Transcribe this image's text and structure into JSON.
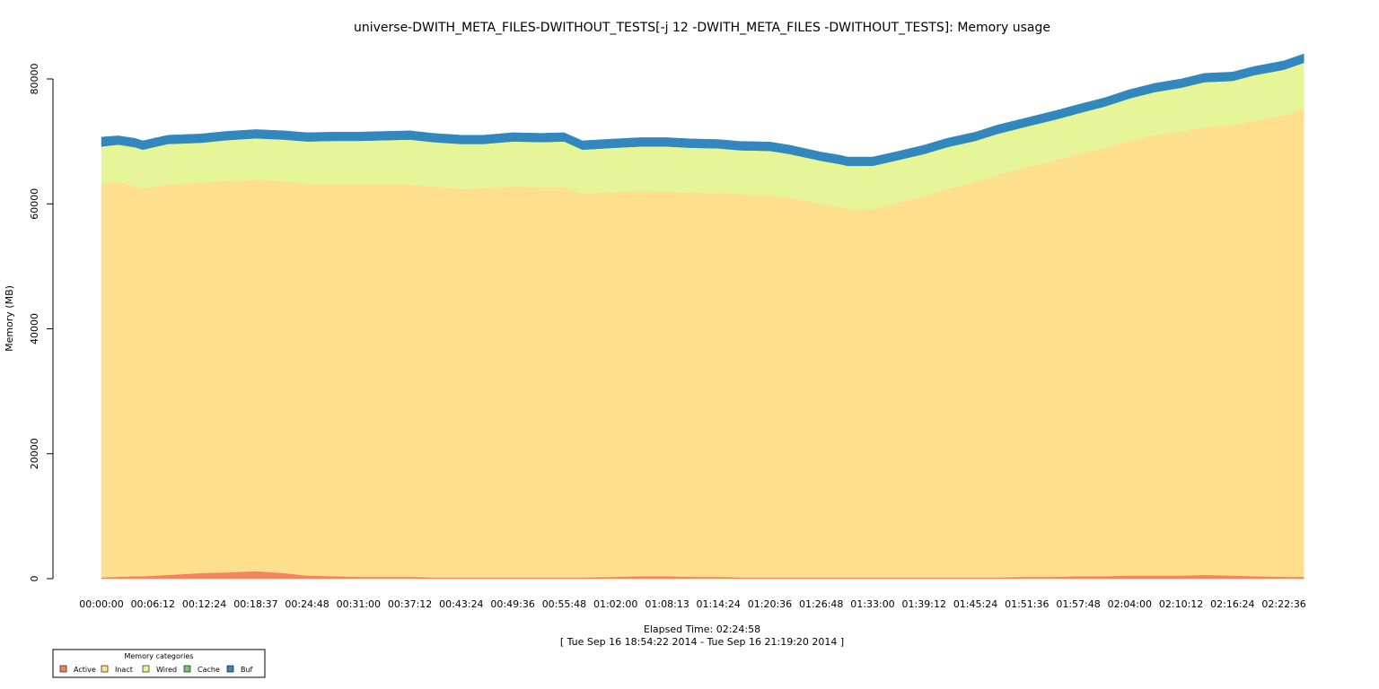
{
  "chart_data": {
    "type": "area",
    "stacked": true,
    "title": "universe-DWITH_META_FILES-DWITHOUT_TESTS[-j 12 -DWITH_META_FILES -DWITHOUT_TESTS]: Memory usage",
    "ylabel": "Memory (MB)",
    "xlabel": "Elapsed Time: 02:24:58",
    "xlabel_sub": "[ Tue Sep 16 18:54:22 2014 - Tue Sep 16 21:19:20 2014 ]",
    "ylim": [
      0,
      80000
    ],
    "y_ticks": [
      "0",
      "20000",
      "40000",
      "60000",
      "80000"
    ],
    "y_tick_values": [
      0,
      20000,
      40000,
      60000,
      80000
    ],
    "x_range_minutes": [
      0,
      144.97
    ],
    "x_tick_labels": [
      "00:00:00",
      "00:06:12",
      "00:12:24",
      "00:18:37",
      "00:24:48",
      "00:31:00",
      "00:37:12",
      "00:43:24",
      "00:49:36",
      "00:55:48",
      "01:02:00",
      "01:08:13",
      "01:14:24",
      "01:20:36",
      "01:26:48",
      "01:33:00",
      "01:39:12",
      "01:45:24",
      "01:51:36",
      "01:57:48",
      "02:04:00",
      "02:10:12",
      "02:16:24",
      "02:22:36"
    ],
    "x_tick_minutes": [
      0,
      6.2,
      12.4,
      18.617,
      24.8,
      31.0,
      37.2,
      43.4,
      49.6,
      55.8,
      62.0,
      68.217,
      74.4,
      80.6,
      86.8,
      93.0,
      99.2,
      105.4,
      111.6,
      117.8,
      124.0,
      130.2,
      136.4,
      142.6
    ],
    "x": [
      0,
      2,
      4,
      5,
      8,
      12,
      15,
      18.6,
      22,
      24.8,
      28,
      31,
      34,
      37.2,
      40,
      43.4,
      46,
      49.6,
      53,
      55.8,
      58,
      62,
      65,
      68.2,
      71,
      74.4,
      77,
      80.6,
      83,
      86.8,
      89,
      90,
      93,
      96,
      99.2,
      102,
      105.4,
      108,
      111.6,
      115,
      117.8,
      121,
      124,
      127,
      130.2,
      133,
      136.4,
      139,
      142.6,
      145
    ],
    "legend": {
      "title": "Memory categories",
      "entries": [
        "Active",
        "Inact",
        "Wired",
        "Cache",
        "Buf"
      ],
      "placement": "bottom-left"
    },
    "series": [
      {
        "name": "Active",
        "color": "#f4845f",
        "values": [
          200,
          300,
          400,
          400,
          600,
          900,
          1000,
          1200,
          900,
          500,
          400,
          300,
          300,
          300,
          200,
          200,
          200,
          200,
          200,
          200,
          200,
          300,
          400,
          400,
          300,
          300,
          200,
          200,
          200,
          200,
          200,
          200,
          200,
          200,
          200,
          200,
          200,
          200,
          300,
          300,
          400,
          400,
          500,
          500,
          500,
          600,
          500,
          400,
          300,
          300
        ]
      },
      {
        "name": "Inact",
        "color": "#fddf8d",
        "values": [
          63000,
          63200,
          62500,
          62000,
          62500,
          62500,
          62700,
          62700,
          62700,
          62700,
          62800,
          62800,
          62800,
          62800,
          62600,
          62200,
          62300,
          62600,
          62500,
          62500,
          61400,
          61600,
          61700,
          61600,
          61500,
          61400,
          61400,
          61200,
          60800,
          59800,
          59300,
          59000,
          59000,
          60000,
          61000,
          62200,
          63300,
          64400,
          65600,
          66600,
          67600,
          68600,
          69600,
          70500,
          71100,
          71700,
          72100,
          72900,
          73900,
          75000
        ]
      },
      {
        "name": "Wired",
        "color": "#e6f598",
        "values": [
          6000,
          6000,
          6200,
          6300,
          6500,
          6400,
          6500,
          6600,
          6700,
          6800,
          6900,
          7000,
          7100,
          7200,
          7100,
          7200,
          7100,
          7200,
          7200,
          7300,
          7100,
          7100,
          7100,
          7200,
          7200,
          7200,
          7000,
          7100,
          7000,
          6900,
          6900,
          6900,
          6900,
          6800,
          6800,
          6700,
          6600,
          6600,
          6500,
          6600,
          6500,
          6600,
          6800,
          6900,
          7000,
          7200,
          7100,
          7300,
          7300,
          7300
        ]
      },
      {
        "name": "Cache",
        "color": "#7fbf7b",
        "values": [
          0,
          0,
          0,
          0,
          0,
          0,
          0,
          0,
          0,
          0,
          0,
          0,
          0,
          0,
          0,
          0,
          0,
          0,
          0,
          0,
          0,
          0,
          0,
          0,
          0,
          0,
          0,
          0,
          0,
          0,
          0,
          0,
          0,
          0,
          0,
          0,
          0,
          0,
          0,
          0,
          0,
          0,
          0,
          0,
          0,
          0,
          0,
          0,
          0,
          0
        ]
      },
      {
        "name": "Buf",
        "color": "#3288bd",
        "values": [
          1500,
          1400,
          1400,
          1400,
          1400,
          1400,
          1400,
          1400,
          1400,
          1400,
          1400,
          1400,
          1400,
          1400,
          1400,
          1400,
          1400,
          1400,
          1400,
          1400,
          1400,
          1400,
          1400,
          1400,
          1400,
          1400,
          1400,
          1400,
          1400,
          1400,
          1400,
          1400,
          1400,
          1400,
          1400,
          1400,
          1400,
          1400,
          1400,
          1400,
          1400,
          1400,
          1400,
          1400,
          1400,
          1400,
          1400,
          1400,
          1400,
          1400
        ]
      }
    ]
  }
}
